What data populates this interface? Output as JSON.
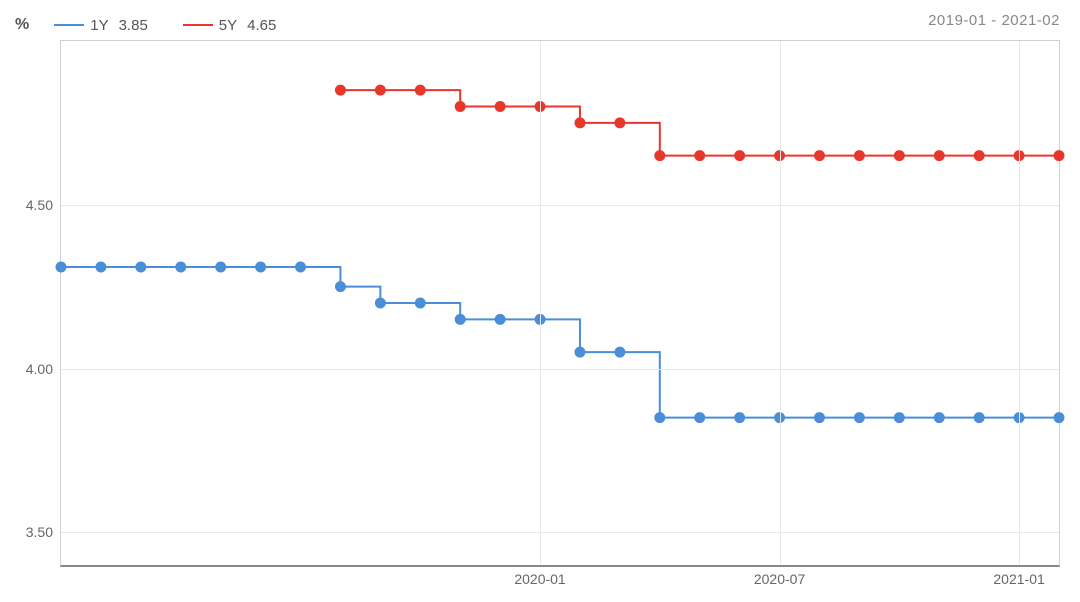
{
  "header": {
    "unit": "%",
    "date_range": "2019-01 - 2021-02"
  },
  "legend": [
    {
      "label": "1Y",
      "value": "3.85",
      "color": "#4a8ed8"
    },
    {
      "label": "5Y",
      "value": "4.65",
      "color": "#e8362c"
    }
  ],
  "chart": {
    "type": "line",
    "background_color": "#ffffff",
    "grid_color": "#e8e8e8",
    "border_color": "#d0d0d0",
    "axis_color": "#888888",
    "label_color": "#666666",
    "label_fontsize": 14,
    "ylim": [
      3.4,
      5.0
    ],
    "yticks": [
      3.5,
      4.0,
      4.5
    ],
    "xlim": [
      0,
      25
    ],
    "xticks": [
      {
        "pos": 12,
        "label": "2020-01"
      },
      {
        "pos": 18,
        "label": "2020-07"
      },
      {
        "pos": 24,
        "label": "2021-01"
      }
    ],
    "marker_radius": 5.5,
    "line_width": 2,
    "series": [
      {
        "name": "1Y",
        "color": "#4a8ed8",
        "points": [
          {
            "x": 0,
            "y": 4.31
          },
          {
            "x": 1,
            "y": 4.31
          },
          {
            "x": 2,
            "y": 4.31
          },
          {
            "x": 3,
            "y": 4.31
          },
          {
            "x": 4,
            "y": 4.31
          },
          {
            "x": 5,
            "y": 4.31
          },
          {
            "x": 6,
            "y": 4.31
          },
          {
            "x": 7,
            "y": 4.25
          },
          {
            "x": 8,
            "y": 4.2
          },
          {
            "x": 9,
            "y": 4.2
          },
          {
            "x": 10,
            "y": 4.15
          },
          {
            "x": 11,
            "y": 4.15
          },
          {
            "x": 12,
            "y": 4.15
          },
          {
            "x": 13,
            "y": 4.05
          },
          {
            "x": 14,
            "y": 4.05
          },
          {
            "x": 15,
            "y": 3.85
          },
          {
            "x": 16,
            "y": 3.85
          },
          {
            "x": 17,
            "y": 3.85
          },
          {
            "x": 18,
            "y": 3.85
          },
          {
            "x": 19,
            "y": 3.85
          },
          {
            "x": 20,
            "y": 3.85
          },
          {
            "x": 21,
            "y": 3.85
          },
          {
            "x": 22,
            "y": 3.85
          },
          {
            "x": 23,
            "y": 3.85
          },
          {
            "x": 24,
            "y": 3.85
          },
          {
            "x": 25,
            "y": 3.85
          }
        ]
      },
      {
        "name": "5Y",
        "color": "#e8362c",
        "points": [
          {
            "x": 7,
            "y": 4.85
          },
          {
            "x": 8,
            "y": 4.85
          },
          {
            "x": 9,
            "y": 4.85
          },
          {
            "x": 10,
            "y": 4.8
          },
          {
            "x": 11,
            "y": 4.8
          },
          {
            "x": 12,
            "y": 4.8
          },
          {
            "x": 13,
            "y": 4.75
          },
          {
            "x": 14,
            "y": 4.75
          },
          {
            "x": 15,
            "y": 4.65
          },
          {
            "x": 16,
            "y": 4.65
          },
          {
            "x": 17,
            "y": 4.65
          },
          {
            "x": 18,
            "y": 4.65
          },
          {
            "x": 19,
            "y": 4.65
          },
          {
            "x": 20,
            "y": 4.65
          },
          {
            "x": 21,
            "y": 4.65
          },
          {
            "x": 22,
            "y": 4.65
          },
          {
            "x": 23,
            "y": 4.65
          },
          {
            "x": 24,
            "y": 4.65
          },
          {
            "x": 25,
            "y": 4.65
          }
        ]
      }
    ]
  }
}
